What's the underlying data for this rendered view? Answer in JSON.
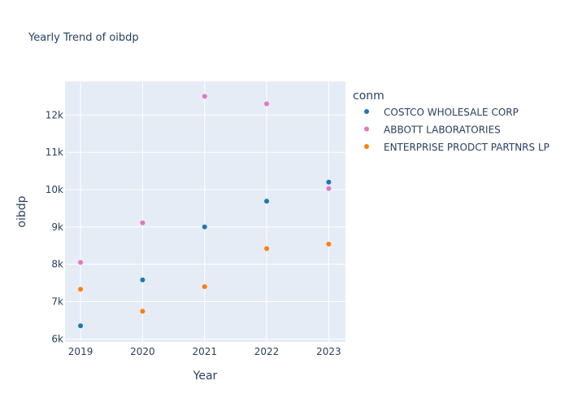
{
  "chart_data": {
    "type": "scatter",
    "title": "Yearly Trend of oibdp",
    "xlabel": "Year",
    "ylabel": "oibdp",
    "x": [
      2019,
      2020,
      2021,
      2022,
      2023
    ],
    "x_ticks": [
      "2019",
      "2020",
      "2021",
      "2022",
      "2023"
    ],
    "xlim": [
      2018.75,
      2023.27
    ],
    "y_ticks": [
      6000,
      7000,
      8000,
      9000,
      10000,
      11000,
      12000
    ],
    "y_tick_labels": [
      "6k",
      "7k",
      "8k",
      "9k",
      "10k",
      "11k",
      "12k"
    ],
    "ylim": [
      5920,
      12900
    ],
    "legend_title": "conm",
    "legend_position": "right",
    "grid": true,
    "series": [
      {
        "name": "COSTCO WHOLESALE CORP",
        "color": "#1f77b4",
        "values": [
          6350,
          7580,
          9000,
          9690,
          10200
        ]
      },
      {
        "name": "ABBOTT LABORATORIES",
        "color": "#e377c2",
        "values": [
          8050,
          9110,
          12500,
          12300,
          10030
        ]
      },
      {
        "name": "ENTERPRISE PRODCT PARTNRS LP",
        "color": "#ff7f0e",
        "values": [
          7330,
          6740,
          7400,
          8420,
          8540
        ]
      }
    ]
  }
}
